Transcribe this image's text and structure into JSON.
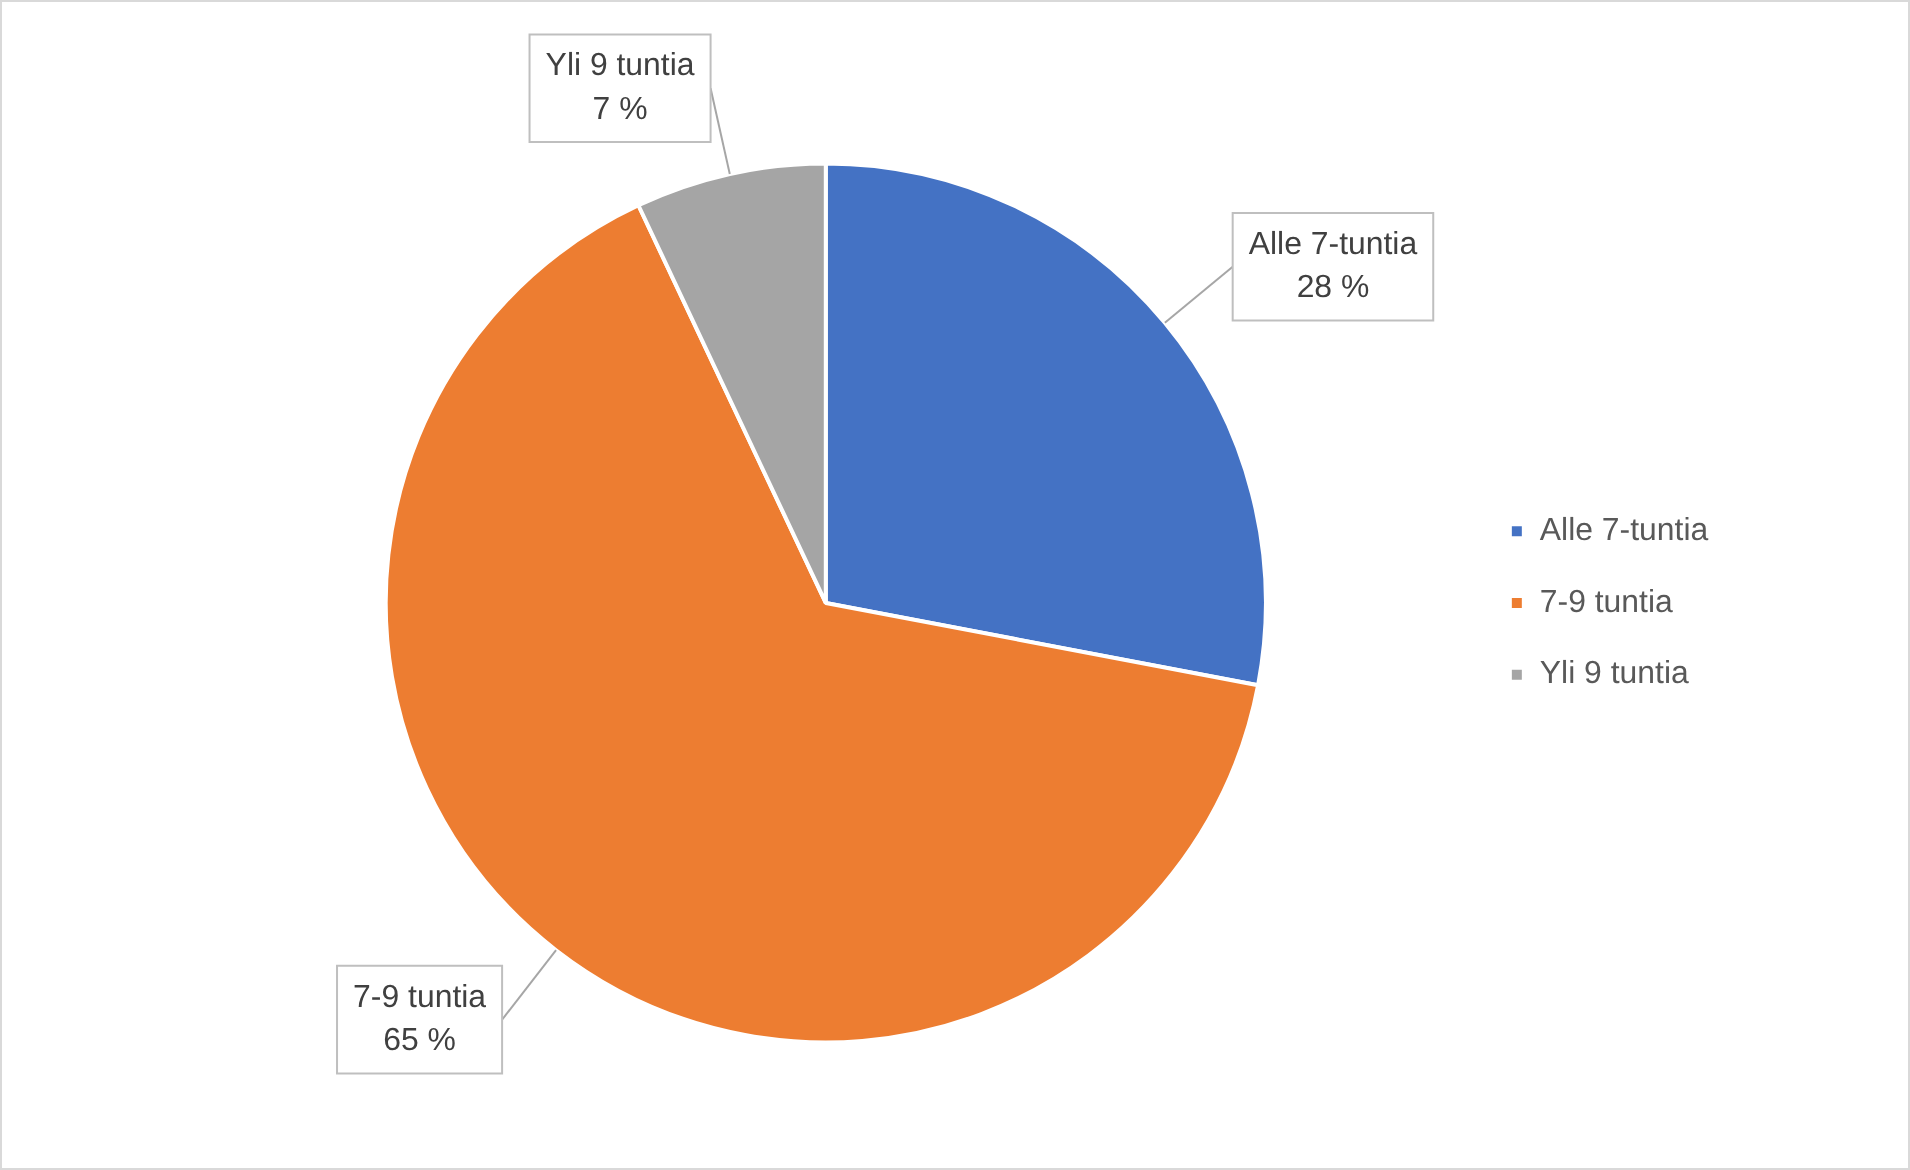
{
  "chart_data": {
    "type": "pie",
    "categories": [
      "Alle 7-tuntia",
      "7-9 tuntia",
      "Yli 9 tuntia"
    ],
    "values": [
      28,
      65,
      7
    ],
    "colors": [
      "#4472c4",
      "#ed7d31",
      "#a5a5a5"
    ],
    "value_labels": [
      "28 %",
      "65 %",
      "7 %"
    ],
    "legend": "right"
  }
}
